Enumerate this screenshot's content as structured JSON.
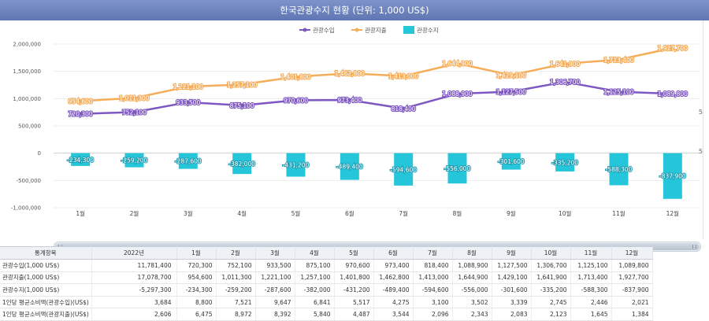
{
  "title": "한국관광수지 현황 (단위: 1,000 US$)",
  "chart_data": {
    "type": "line+bar",
    "categories": [
      "1월",
      "2월",
      "3월",
      "4월",
      "5월",
      "6월",
      "7월",
      "8월",
      "9월",
      "10월",
      "11월",
      "12월"
    ],
    "series": [
      {
        "name": "관광수입",
        "type": "line",
        "color": "#7e57c2",
        "values": [
          720300,
          752100,
          933500,
          875100,
          970600,
          973400,
          818400,
          1088900,
          1127500,
          1306700,
          1125100,
          1089800
        ],
        "labels": [
          "720,300",
          "752,100",
          "933,500",
          "875,100",
          "970,600",
          "973,400",
          "818,400",
          "1,088,900",
          "1,127,500",
          "1,306,700",
          "1,125,100",
          "1,089,800"
        ]
      },
      {
        "name": "관광지출",
        "type": "line",
        "color": "#f5ad5a",
        "values": [
          954600,
          1011300,
          1221100,
          1257100,
          1401800,
          1462800,
          1413000,
          1644900,
          1429100,
          1641900,
          1713400,
          1927700
        ],
        "labels": [
          "954,600",
          "1,011,300",
          "1,221,100",
          "1,257,100",
          "1,401,800",
          "1,462,800",
          "1,413,000",
          "1,644,900",
          "1,429,100",
          "1,641,900",
          "1,713,400",
          "1,927,700"
        ]
      },
      {
        "name": "관광수지",
        "type": "bar",
        "color": "#26c6da",
        "values": [
          -234300,
          -259200,
          -287600,
          -382000,
          -431200,
          -489400,
          -594600,
          -556000,
          -301600,
          -335200,
          -588300,
          -837900
        ],
        "labels": [
          "-234,300",
          "-259,200",
          "-287,600",
          "-382,000",
          "-431,200",
          "-489,400",
          "-594,600",
          "-556,000",
          "-301,600",
          "-335,200",
          "-588,300",
          "-837,900"
        ]
      }
    ],
    "y_ticks": [
      2000000,
      1500000,
      1000000,
      500000,
      0,
      -500000,
      -1000000
    ],
    "y_tick_labels": [
      "2,000,000",
      "1,500,000",
      "1,000,000",
      "500,000",
      "0",
      "-500,000",
      "-1,000,000"
    ],
    "ylim": [
      -1000000,
      2000000
    ],
    "legend_position": "top-center",
    "grid": true
  },
  "side_markers": {
    "top": "5",
    "bottom": "5"
  },
  "table": {
    "headers": [
      "통계항목",
      "2022년",
      "1월",
      "2월",
      "3월",
      "4월",
      "5월",
      "6월",
      "7월",
      "8월",
      "9월",
      "10월",
      "11월",
      "12월"
    ],
    "rows": [
      [
        "관광수입(1,000 US$)",
        "11,781,400",
        "720,300",
        "752,100",
        "933,500",
        "875,100",
        "970,600",
        "973,400",
        "818,400",
        "1,088,900",
        "1,127,500",
        "1,306,700",
        "1,125,100",
        "1,089,800"
      ],
      [
        "관광지출(1,000 US$)",
        "17,078,700",
        "954,600",
        "1,011,300",
        "1,221,100",
        "1,257,100",
        "1,401,800",
        "1,462,800",
        "1,413,000",
        "1,644,900",
        "1,429,100",
        "1,641,900",
        "1,713,400",
        "1,927,700"
      ],
      [
        "관광수지(1,000 US$)",
        "-5,297,300",
        "-234,300",
        "-259,200",
        "-287,600",
        "-382,000",
        "-431,200",
        "-489,400",
        "-594,600",
        "-556,000",
        "-301,600",
        "-335,200",
        "-588,300",
        "-837,900"
      ],
      [
        "1인당 평균소비액(관광수입)(US$)",
        "3,684",
        "8,800",
        "7,521",
        "9,647",
        "6,841",
        "5,517",
        "4,275",
        "3,100",
        "3,502",
        "3,339",
        "2,745",
        "2,446",
        "2,021"
      ],
      [
        "1인당 평균소비액(관광지출)(US$)",
        "2,606",
        "6,475",
        "8,972",
        "8,392",
        "5,840",
        "4,487",
        "3,544",
        "2,096",
        "2,343",
        "2,083",
        "2,123",
        "1,645",
        "1,384"
      ]
    ]
  }
}
